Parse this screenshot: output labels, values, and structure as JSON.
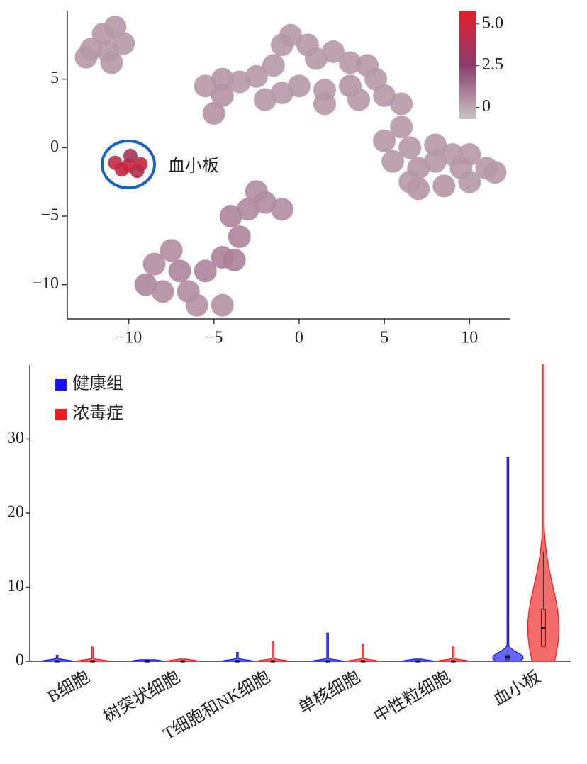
{
  "chart_data": [
    {
      "type": "scatter",
      "x": [
        -11.5,
        -10.8,
        -12.2,
        -11.2,
        -10.3,
        -11,
        -12.5,
        -5.5,
        -4.5,
        -3.5,
        -2.5,
        -1.5,
        -1,
        -0.5,
        0.5,
        1,
        2,
        3,
        4,
        4.5,
        3,
        1.5,
        0,
        -1,
        -2,
        -4.5,
        -5,
        1.5,
        3.5,
        5,
        6,
        5,
        6,
        6.5,
        5.5,
        7,
        8,
        9,
        10,
        11,
        11.5,
        10,
        8.5,
        7,
        6.5,
        8,
        9.5,
        -8.5,
        -9,
        -8,
        -7,
        -6.5,
        -6,
        -4.5,
        -5.5,
        -7.5,
        -4.5,
        -3.8,
        -3.5,
        -4,
        -3,
        -2.5,
        -2,
        -1,
        -10.8,
        -10,
        -9.3,
        -9.9,
        -10.4,
        -9.5
      ],
      "y": [
        8.3,
        8.8,
        7.2,
        7,
        7.6,
        6.2,
        6.6,
        4.5,
        5,
        4.8,
        5.2,
        6,
        7.5,
        8.2,
        7.5,
        6.5,
        7,
        6.2,
        6,
        5,
        4.5,
        4.2,
        4.5,
        4,
        3.5,
        3.8,
        2.5,
        3.2,
        3.5,
        3.8,
        3.2,
        0.5,
        1.5,
        0,
        -1,
        -1.5,
        -1,
        -0.5,
        -0.5,
        -1.5,
        -1.8,
        -2.5,
        -2.8,
        -3,
        -2.5,
        0.2,
        -1.5,
        -8.5,
        -10,
        -10.5,
        -9,
        -10.5,
        -11.5,
        -11.5,
        -9,
        -7.5,
        -8,
        -8.2,
        -6.5,
        -5,
        -4.5,
        -3.2,
        -4,
        -4.5,
        -1.1,
        -1.3,
        -1.2,
        -0.6,
        -1.6,
        -1.7
      ],
      "values": [
        0.3,
        0.3,
        0.3,
        0.3,
        0.3,
        0.3,
        0.3,
        0.3,
        0.4,
        0.3,
        0.3,
        0.3,
        0.3,
        0.3,
        0.3,
        0.3,
        0.3,
        0.3,
        0.3,
        0.3,
        0.4,
        0.3,
        0.3,
        0.3,
        0.3,
        0.5,
        0.5,
        0.3,
        0.3,
        0.3,
        0.3,
        0.3,
        0.3,
        0.3,
        0.3,
        0.4,
        0.3,
        0.3,
        0.3,
        0.3,
        0.3,
        0.3,
        0.4,
        0.4,
        0.3,
        0.3,
        0.3,
        0.6,
        0.8,
        0.6,
        0.8,
        0.6,
        0.5,
        0.5,
        0.8,
        0.6,
        0.9,
        0.9,
        0.8,
        0.8,
        0.7,
        0.6,
        0.6,
        0.6,
        4.5,
        5,
        4.8,
        3.5,
        4.6,
        4
      ],
      "xlim": [
        -13.6,
        12.4
      ],
      "ylim": [
        -12.5,
        10
      ],
      "xticks": [
        {
          "value": -10,
          "label": "−10"
        },
        {
          "value": -5,
          "label": "−5"
        },
        0,
        5,
        10
      ],
      "yticks": [
        {
          "value": -10,
          "label": "−10"
        },
        {
          "value": -5,
          "label": "−5"
        },
        0,
        5
      ],
      "colorbar": {
        "lim": [
          -0.7,
          5.8
        ],
        "ticks": [
          0,
          2.5,
          {
            "value": 5,
            "label": "5.0"
          }
        ],
        "colors": [
          "#c8c3c3",
          "#8c3c6e",
          "#e11e28"
        ]
      },
      "annotation": "血小板"
    },
    {
      "type": "violin",
      "categories": [
        "B细胞",
        "树突状细胞",
        "T细胞和NK细胞",
        "单核细胞",
        "中性粒细胞",
        "血小板"
      ],
      "series": [
        {
          "name": "健康组",
          "color": "#1414ff",
          "max": [
            0.8,
            0.2,
            1.2,
            3.8,
            0.3,
            27.5
          ],
          "median": [
            0,
            0,
            0,
            0,
            0,
            0.5
          ],
          "q1": [
            0,
            0,
            0,
            0,
            0,
            0.2
          ],
          "q3": [
            0,
            0,
            0,
            0,
            0,
            0.8
          ],
          "whisker": [
            0,
            0,
            0,
            0,
            0,
            1.5
          ]
        },
        {
          "name": "浓毒症",
          "color": "#ee1c1c",
          "max": [
            1.9,
            0.3,
            2.6,
            2.3,
            1.9,
            40
          ],
          "median": [
            0,
            0,
            0,
            0,
            0,
            4.5
          ],
          "q1": [
            0,
            0,
            0,
            0,
            0,
            2
          ],
          "q3": [
            0,
            0,
            0,
            0,
            0,
            7
          ],
          "whisker": [
            0,
            0,
            0,
            0,
            0,
            14.8
          ]
        }
      ],
      "ylim": [
        0,
        40
      ],
      "yticks": [
        0,
        10,
        20,
        30
      ],
      "legend": "upper left"
    }
  ]
}
